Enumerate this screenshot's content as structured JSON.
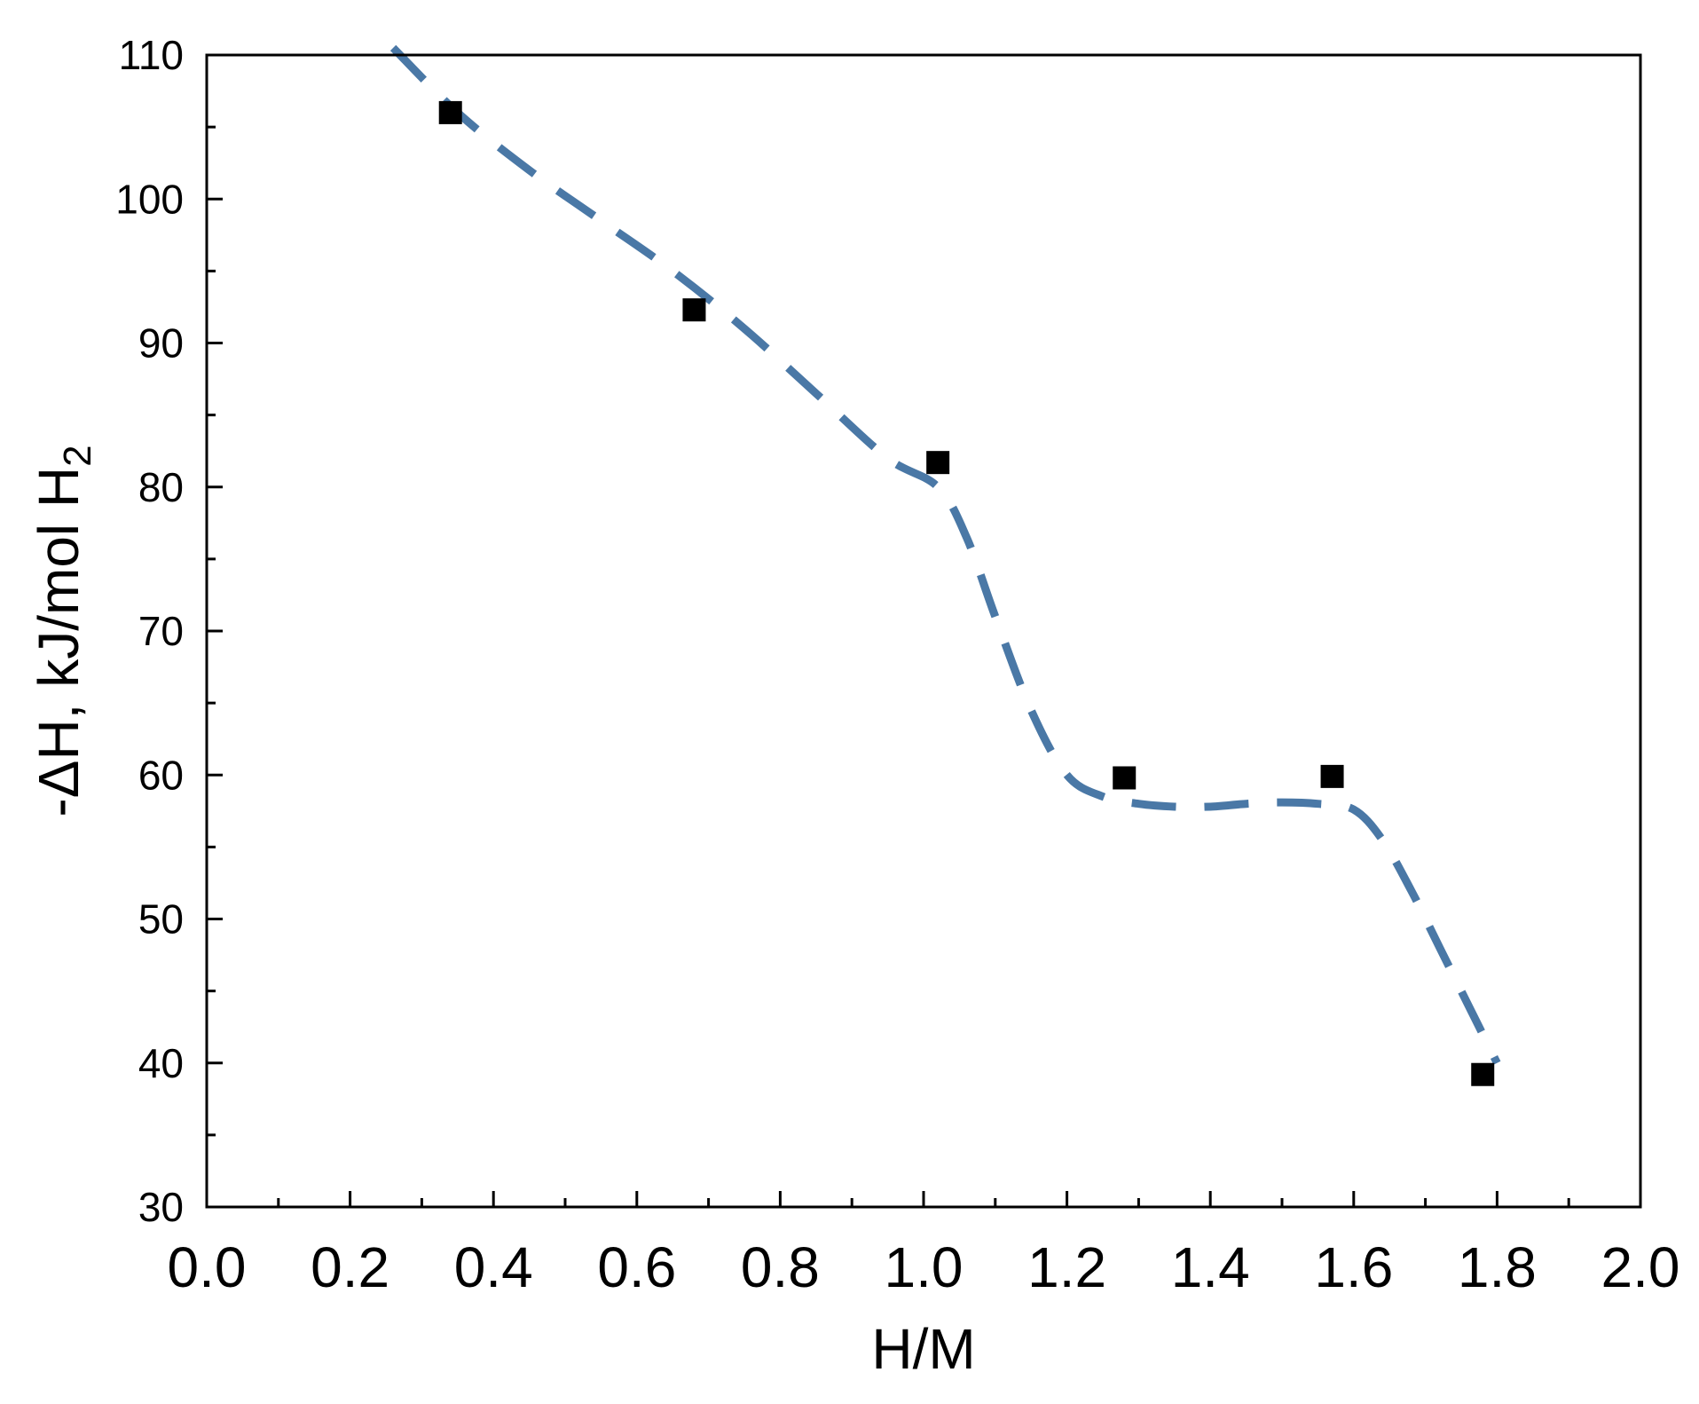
{
  "chart_data": {
    "type": "scatter",
    "xlabel": "H/M",
    "ylabel": "-ΔH, kJ/mol H",
    "ylabel_subscript": "2",
    "xlim": [
      0.0,
      2.0
    ],
    "ylim": [
      30,
      110
    ],
    "x_ticks": [
      0.0,
      0.2,
      0.4,
      0.6,
      0.8,
      1.0,
      1.2,
      1.4,
      1.6,
      1.8,
      2.0
    ],
    "x_tick_labels": [
      "0.0",
      "0.2",
      "0.4",
      "0.6",
      "0.8",
      "1.0",
      "1.2",
      "1.4",
      "1.6",
      "1.8",
      "2.0"
    ],
    "y_ticks": [
      30,
      40,
      50,
      60,
      70,
      80,
      90,
      100,
      110
    ],
    "y_tick_labels": [
      "30",
      "40",
      "50",
      "60",
      "70",
      "80",
      "90",
      "100",
      "110"
    ],
    "x_minor_step": 0.1,
    "y_minor_step": 5,
    "grid": false,
    "series": [
      {
        "type": "scatter",
        "marker": "square",
        "color": "#000000",
        "x": [
          0.34,
          0.68,
          1.02,
          1.28,
          1.57,
          1.78
        ],
        "y": [
          106.0,
          92.3,
          81.7,
          59.8,
          59.9,
          39.2
        ]
      },
      {
        "type": "line",
        "style": "dashed",
        "color": "#4a78a6",
        "x": [
          0.26,
          0.35,
          0.45,
          0.55,
          0.65,
          0.75,
          0.85,
          0.95,
          1.02,
          1.06,
          1.1,
          1.15,
          1.2,
          1.25,
          1.3,
          1.35,
          1.4,
          1.45,
          1.5,
          1.55,
          1.6,
          1.64,
          1.68,
          1.72,
          1.76,
          1.8
        ],
        "y": [
          110.5,
          106.0,
          102.0,
          98.5,
          95.0,
          91.0,
          86.5,
          82.0,
          80.0,
          76.5,
          71.0,
          64.5,
          60.0,
          58.5,
          58.0,
          57.8,
          57.8,
          58.0,
          58.1,
          58.0,
          57.6,
          55.5,
          52.0,
          48.0,
          44.0,
          40.0
        ]
      }
    ]
  }
}
